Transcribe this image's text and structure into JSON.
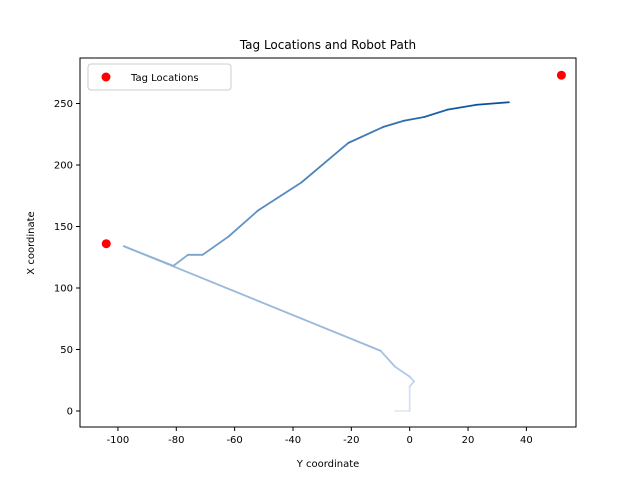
{
  "chart_data": {
    "type": "scatter",
    "title": "Tag Locations and Robot Path",
    "xlabel": "Y coordinate",
    "ylabel": "X coordinate",
    "xlim": [
      -113,
      57
    ],
    "ylim": [
      -13,
      287
    ],
    "xticks": [
      -100,
      -80,
      -60,
      -40,
      -20,
      0,
      20,
      40
    ],
    "yticks": [
      0,
      50,
      100,
      150,
      200,
      250
    ],
    "legend": {
      "label": "Tag Locations",
      "location": "top-left"
    },
    "tag_points": {
      "name": "Tag Locations",
      "color": "#ff0000",
      "points": [
        {
          "x": -104,
          "y": 136
        },
        {
          "x": 52,
          "y": 273
        }
      ]
    },
    "robot_path": {
      "colormap": "Blues",
      "points": [
        {
          "x": -5,
          "y": 0
        },
        {
          "x": 0,
          "y": 0
        },
        {
          "x": 0,
          "y": 20
        },
        {
          "x": 1.5,
          "y": 24
        },
        {
          "x": 0,
          "y": 28
        },
        {
          "x": -5,
          "y": 36
        },
        {
          "x": -10,
          "y": 49
        },
        {
          "x": -98,
          "y": 134
        },
        {
          "x": -81,
          "y": 118
        },
        {
          "x": -76,
          "y": 127
        },
        {
          "x": -71,
          "y": 127
        },
        {
          "x": -62,
          "y": 142
        },
        {
          "x": -52,
          "y": 163
        },
        {
          "x": -37,
          "y": 186
        },
        {
          "x": -21,
          "y": 218
        },
        {
          "x": -9,
          "y": 231
        },
        {
          "x": -2,
          "y": 236
        },
        {
          "x": 5,
          "y": 239
        },
        {
          "x": 13,
          "y": 245
        },
        {
          "x": 23,
          "y": 249
        },
        {
          "x": 34,
          "y": 251
        }
      ]
    }
  }
}
